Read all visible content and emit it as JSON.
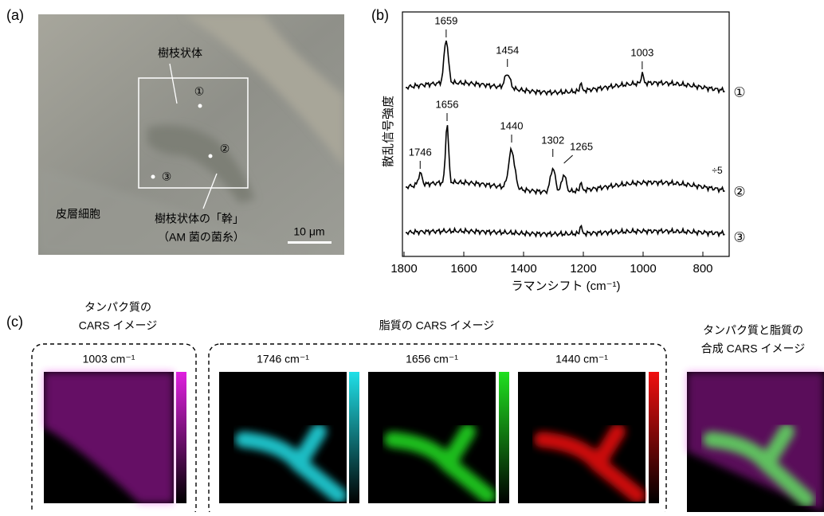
{
  "panel_a": {
    "label": "(a)",
    "dendrite": "樹枝状体",
    "marks": [
      "①",
      "②",
      "③"
    ],
    "cortex": "皮層細胞",
    "trunk": "樹枝状体の「幹」",
    "hypha": "（AM 菌の菌糸）",
    "scale_bar": "10 μm"
  },
  "panel_b": {
    "label": "(b)",
    "y_label": "散乱信号強度",
    "x_label": "ラマンシフト (cm⁻¹)",
    "xlim": [
      1800,
      720
    ],
    "xticks": [
      1800,
      1600,
      1400,
      1200,
      1000,
      800
    ],
    "spectra": [
      {
        "name": "①",
        "peaks": [
          1659,
          1454,
          1003
        ]
      },
      {
        "name": "②",
        "peaks": [
          1746,
          1656,
          1440,
          1302,
          1265
        ],
        "scale": "÷5"
      },
      {
        "name": "③",
        "peaks": []
      }
    ]
  },
  "panel_c": {
    "label": "(c)",
    "protein_title": [
      "タンパク質の",
      "CARS イメージ"
    ],
    "lipid_title": "脂質の CARS イメージ",
    "merged_title": [
      "タンパク質と脂質の",
      "合成 CARS イメージ"
    ],
    "images": [
      {
        "band": "1003 cm⁻¹",
        "color": "#e020e0"
      },
      {
        "band": "1746 cm⁻¹",
        "color": "#20e0e8"
      },
      {
        "band": "1656 cm⁻¹",
        "color": "#20e020"
      },
      {
        "band": "1440 cm⁻¹",
        "color": "#f01010"
      }
    ]
  }
}
